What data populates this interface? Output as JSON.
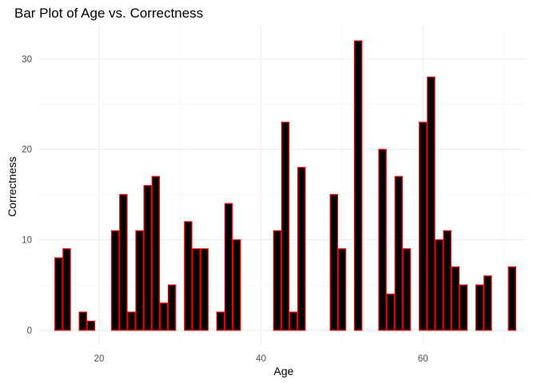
{
  "chart_data": {
    "type": "bar",
    "title": "Bar Plot of Age vs. Correctness",
    "xlabel": "Age",
    "ylabel": "Correctness",
    "xlim": [
      12.5,
      72.7
    ],
    "ylim": [
      -1.6,
      33.7
    ],
    "xticks": [
      20,
      40,
      60
    ],
    "yticks": [
      0,
      10,
      20,
      30
    ],
    "grid": true,
    "bar_fill": "#000000",
    "bar_outline": "#e00000",
    "x": [
      15,
      16,
      18,
      19,
      22,
      23,
      24,
      25,
      26,
      27,
      28,
      29,
      31,
      32,
      33,
      35,
      36,
      37,
      42,
      43,
      44,
      45,
      49,
      50,
      52,
      55,
      56,
      57,
      58,
      60,
      61,
      62,
      63,
      64,
      65,
      67,
      68,
      71
    ],
    "values": [
      8,
      9,
      2,
      1,
      11,
      15,
      2,
      11,
      16,
      17,
      3,
      5,
      12,
      9,
      9,
      2,
      14,
      10,
      11,
      23,
      2,
      18,
      15,
      9,
      32,
      20,
      4,
      17,
      9,
      23,
      28,
      10,
      11,
      7,
      5,
      5,
      6,
      7
    ]
  }
}
